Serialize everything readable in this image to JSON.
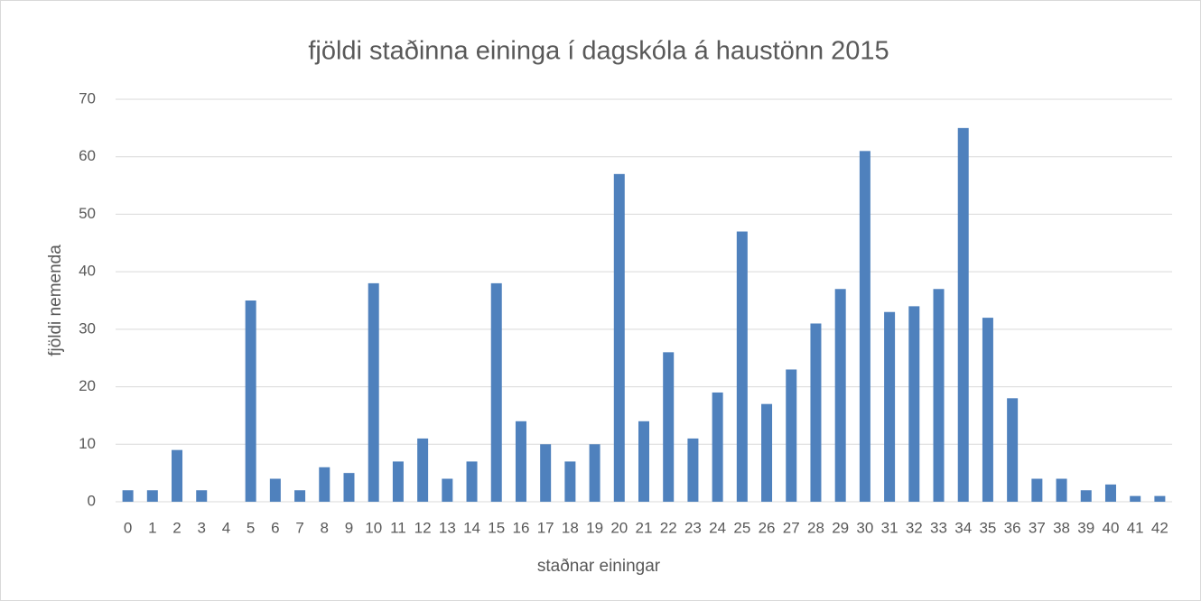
{
  "chart_data": {
    "type": "bar",
    "title": "fjöldi staðinna eininga í dagskóla á haustönn 2015",
    "x_label": "staðnar einingar",
    "y_label": "fjöldi nemenda",
    "categories": [
      0,
      1,
      2,
      3,
      4,
      5,
      6,
      7,
      8,
      9,
      10,
      11,
      12,
      13,
      14,
      15,
      16,
      17,
      18,
      19,
      20,
      21,
      22,
      23,
      24,
      25,
      26,
      27,
      28,
      29,
      30,
      31,
      32,
      33,
      34,
      35,
      36,
      37,
      38,
      39,
      40,
      41,
      42
    ],
    "values": [
      2,
      2,
      9,
      2,
      0,
      35,
      4,
      2,
      6,
      5,
      38,
      7,
      11,
      4,
      7,
      38,
      14,
      10,
      7,
      10,
      57,
      14,
      26,
      11,
      19,
      47,
      17,
      23,
      31,
      37,
      61,
      33,
      34,
      37,
      65,
      32,
      18,
      4,
      4,
      2,
      3,
      1,
      1
    ],
    "color": "#4f81bd",
    "ylim": [
      0,
      70
    ],
    "yticks": [
      0,
      10,
      20,
      30,
      40,
      50,
      60,
      70
    ],
    "grid": true
  }
}
